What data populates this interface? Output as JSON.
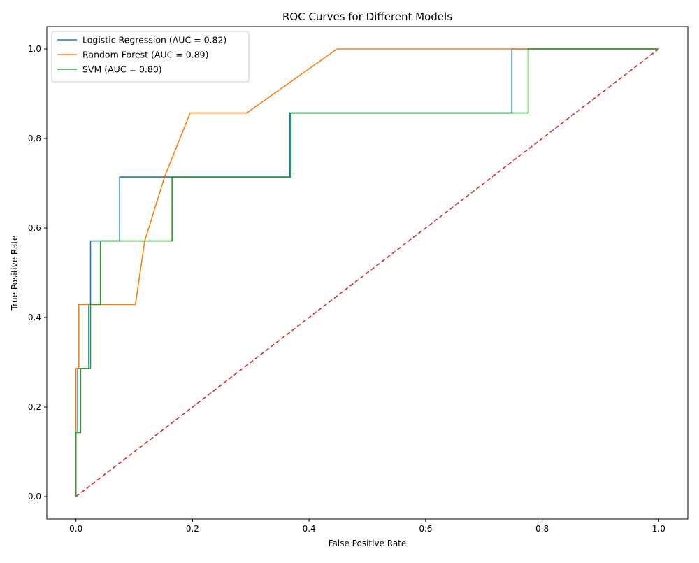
{
  "chart_data": {
    "type": "line",
    "title": "ROC Curves for Different Models",
    "xlabel": "False Positive Rate",
    "ylabel": "True Positive Rate",
    "xlim": [
      -0.05,
      1.05
    ],
    "ylim": [
      -0.05,
      1.05
    ],
    "xticks": [
      "0.0",
      "0.2",
      "0.4",
      "0.6",
      "0.8",
      "1.0"
    ],
    "yticks": [
      "0.0",
      "0.2",
      "0.4",
      "0.6",
      "0.8",
      "1.0"
    ],
    "grid": false,
    "legend_position": "top-left",
    "series": [
      {
        "name": "Logistic Regression (AUC = 0.82)",
        "color": "#1f77b4",
        "x": [
          0,
          0,
          0.003,
          0.003,
          0.022,
          0.022,
          0.025,
          0.025,
          0.075,
          0.075,
          0.367,
          0.367,
          0.748,
          0.748,
          1.0
        ],
        "y": [
          0,
          0.143,
          0.143,
          0.286,
          0.286,
          0.429,
          0.429,
          0.571,
          0.571,
          0.714,
          0.714,
          0.857,
          0.857,
          1.0,
          1.0
        ]
      },
      {
        "name": "Random Forest (AUC = 0.89)",
        "color": "#ff7f0e",
        "x": [
          0,
          0,
          0.005,
          0.005,
          0.102,
          0.118,
          0.152,
          0.196,
          0.293,
          0.448,
          0.748,
          1.0
        ],
        "y": [
          0,
          0.286,
          0.286,
          0.429,
          0.429,
          0.571,
          0.714,
          0.857,
          0.857,
          1.0,
          1.0,
          1.0
        ]
      },
      {
        "name": "SVM (AUC = 0.80)",
        "color": "#2ca02c",
        "x": [
          0,
          0,
          0.008,
          0.008,
          0.025,
          0.025,
          0.042,
          0.042,
          0.165,
          0.165,
          0.369,
          0.369,
          0.776,
          0.776,
          1.0
        ],
        "y": [
          0,
          0.143,
          0.143,
          0.286,
          0.286,
          0.429,
          0.429,
          0.571,
          0.571,
          0.714,
          0.714,
          0.857,
          0.857,
          1.0,
          1.0
        ]
      }
    ],
    "reference_line": {
      "color": "#d62728",
      "dashed": true,
      "x": [
        0,
        1
      ],
      "y": [
        0,
        1
      ]
    }
  }
}
